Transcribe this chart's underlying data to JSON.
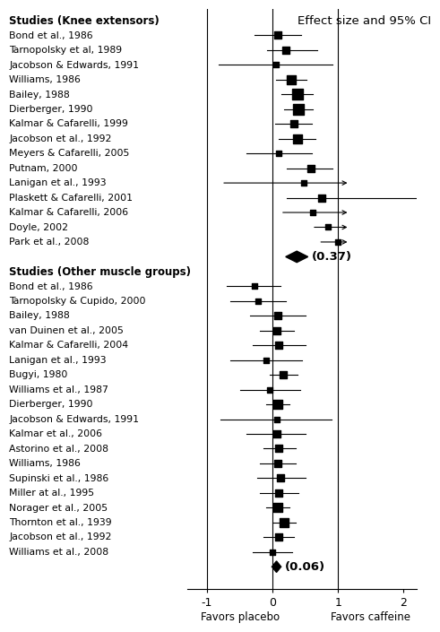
{
  "group1_title": "Studies (Knee extensors)",
  "group2_title": "Studies (Other muscle groups)",
  "plot_title": "Effect size and 95% CI",
  "xlabel_left": "Favors placebo",
  "xlabel_right": "Favors caffeine",
  "xlim": [
    -1.3,
    2.2
  ],
  "xticks": [
    -1,
    0,
    1,
    2
  ],
  "xticklabels": [
    "-1",
    "0",
    "1",
    "2"
  ],
  "group1_studies": [
    "Bond et al., 1986",
    "Tarnopolsky et al, 1989",
    "Jacobson & Edwards, 1991",
    "Williams, 1986",
    "Bailey, 1988",
    "Dierberger, 1990",
    "Kalmar & Cafarelli, 1999",
    "Jacobson et al., 1992",
    "Meyers & Cafarelli, 2005",
    "Putnam, 2000",
    "Lanigan et al., 1993",
    "Plaskett & Cafarelli, 2001",
    "Kalmar & Cafarelli, 2006",
    "Doyle, 2002",
    "Park et al., 2008"
  ],
  "group1_es": [
    0.08,
    0.2,
    0.05,
    0.28,
    0.38,
    0.4,
    0.32,
    0.38,
    0.1,
    0.58,
    0.48,
    0.75,
    0.62,
    0.85,
    1.0
  ],
  "group1_lo": [
    -0.28,
    -0.08,
    -0.82,
    0.05,
    0.14,
    0.18,
    0.04,
    0.1,
    -0.4,
    0.22,
    -0.78,
    0.22,
    0.12,
    0.6,
    0.7
  ],
  "group1_hi": [
    0.44,
    0.68,
    0.92,
    0.52,
    0.62,
    0.62,
    0.6,
    0.65,
    0.6,
    0.92,
    2.2,
    2.2,
    2.2,
    2.2,
    2.2
  ],
  "group1_hi_arrow": [
    false,
    false,
    false,
    false,
    false,
    false,
    false,
    false,
    false,
    false,
    true,
    false,
    true,
    true,
    true
  ],
  "group1_diamond_es": 0.37,
  "group1_diamond_lo": 0.2,
  "group1_diamond_hi": 0.54,
  "group1_marker_sizes": [
    7,
    7,
    5,
    9,
    11,
    11,
    7,
    9,
    5,
    7,
    5,
    7,
    5,
    5,
    5
  ],
  "group2_studies": [
    "Bond et al., 1986",
    "Tarnopolsky & Cupido, 2000",
    "Bailey, 1988",
    "van Duinen et al., 2005",
    "Kalmar & Cafarelli, 2004",
    "Lanigan et al., 1993",
    "Bugyi, 1980",
    "Williams et al., 1987",
    "Dierberger, 1990",
    "Jacobson & Edwards, 1991",
    "Kalmar et al., 2006",
    "Astorino et al., 2008",
    "Williams, 1986",
    "Supinski et al., 1986",
    "Miller at al., 1995",
    "Norager et al., 2005",
    "Thornton et al., 1939",
    "Jacobson et al., 1992",
    "Williams et al., 2008"
  ],
  "group2_es": [
    -0.28,
    -0.22,
    0.08,
    0.06,
    0.1,
    -0.1,
    0.16,
    -0.04,
    0.08,
    0.06,
    0.06,
    0.1,
    0.08,
    0.12,
    0.1,
    0.08,
    0.18,
    0.1,
    0.0
  ],
  "group2_lo": [
    -0.7,
    -0.65,
    -0.35,
    -0.2,
    -0.3,
    -0.65,
    -0.04,
    -0.5,
    -0.1,
    -0.8,
    -0.4,
    -0.14,
    -0.2,
    -0.24,
    -0.2,
    -0.1,
    0.0,
    -0.14,
    -0.3
  ],
  "group2_hi": [
    0.12,
    0.2,
    0.5,
    0.32,
    0.5,
    0.45,
    0.38,
    0.42,
    0.26,
    0.9,
    0.5,
    0.36,
    0.36,
    0.5,
    0.4,
    0.26,
    0.36,
    0.32,
    0.3
  ],
  "group2_hi_arrow": [
    false,
    false,
    false,
    false,
    false,
    false,
    false,
    false,
    false,
    false,
    false,
    false,
    false,
    false,
    false,
    false,
    false,
    false,
    false
  ],
  "group2_diamond_es": 0.06,
  "group2_diamond_lo": -0.01,
  "group2_diamond_hi": 0.13,
  "group2_marker_sizes": [
    5,
    5,
    7,
    7,
    7,
    5,
    7,
    5,
    9,
    5,
    7,
    7,
    7,
    7,
    7,
    9,
    9,
    7,
    5
  ],
  "color_black": "#000000",
  "background": "#ffffff",
  "label_fontsize": 7.8,
  "header_fontsize": 8.5,
  "title_fontsize": 9.5,
  "tick_fontsize": 9,
  "xlabel_fontsize": 8.5
}
